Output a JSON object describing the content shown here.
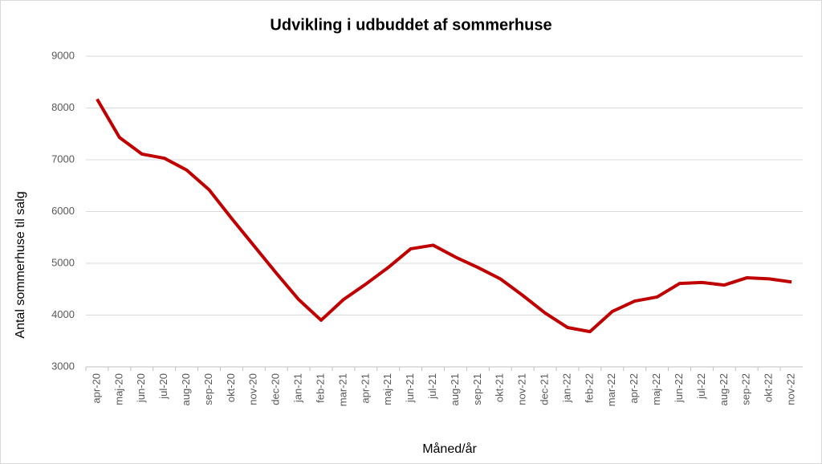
{
  "chart_data": {
    "type": "line",
    "title": "Udvikling i udbuddet af sommerhuse",
    "x_label": "Måned/år",
    "y_label": "Antal sommerhuse til salg",
    "categories": [
      "apr-20",
      "maj-20",
      "jun-20",
      "jul-20",
      "aug-20",
      "sep-20",
      "okt-20",
      "nov-20",
      "dec-20",
      "jan-21",
      "feb-21",
      "mar-21",
      "apr-21",
      "maj-21",
      "jun-21",
      "jul-21",
      "aug-21",
      "sep-21",
      "okt-21",
      "nov-21",
      "dec-21",
      "jan-22",
      "feb-22",
      "mar-22",
      "apr-22",
      "maj-22",
      "jun-22",
      "jul-22",
      "aug-22",
      "sep-22",
      "okt-22",
      "nov-22"
    ],
    "series": [
      {
        "color": "#c00000",
        "values": [
          8170,
          7430,
          7110,
          7030,
          6800,
          6420,
          5870,
          5340,
          4810,
          4300,
          3900,
          4300,
          4600,
          4920,
          5280,
          5350,
          5120,
          4920,
          4700,
          4380,
          4040,
          3760,
          3680,
          4070,
          4270,
          4350,
          4610,
          4630,
          4580,
          4720,
          4700,
          4640
        ]
      }
    ],
    "ylim": [
      3000,
      9000
    ],
    "yticks": [
      3000,
      4000,
      5000,
      6000,
      7000,
      8000,
      9000
    ],
    "grid": true
  }
}
